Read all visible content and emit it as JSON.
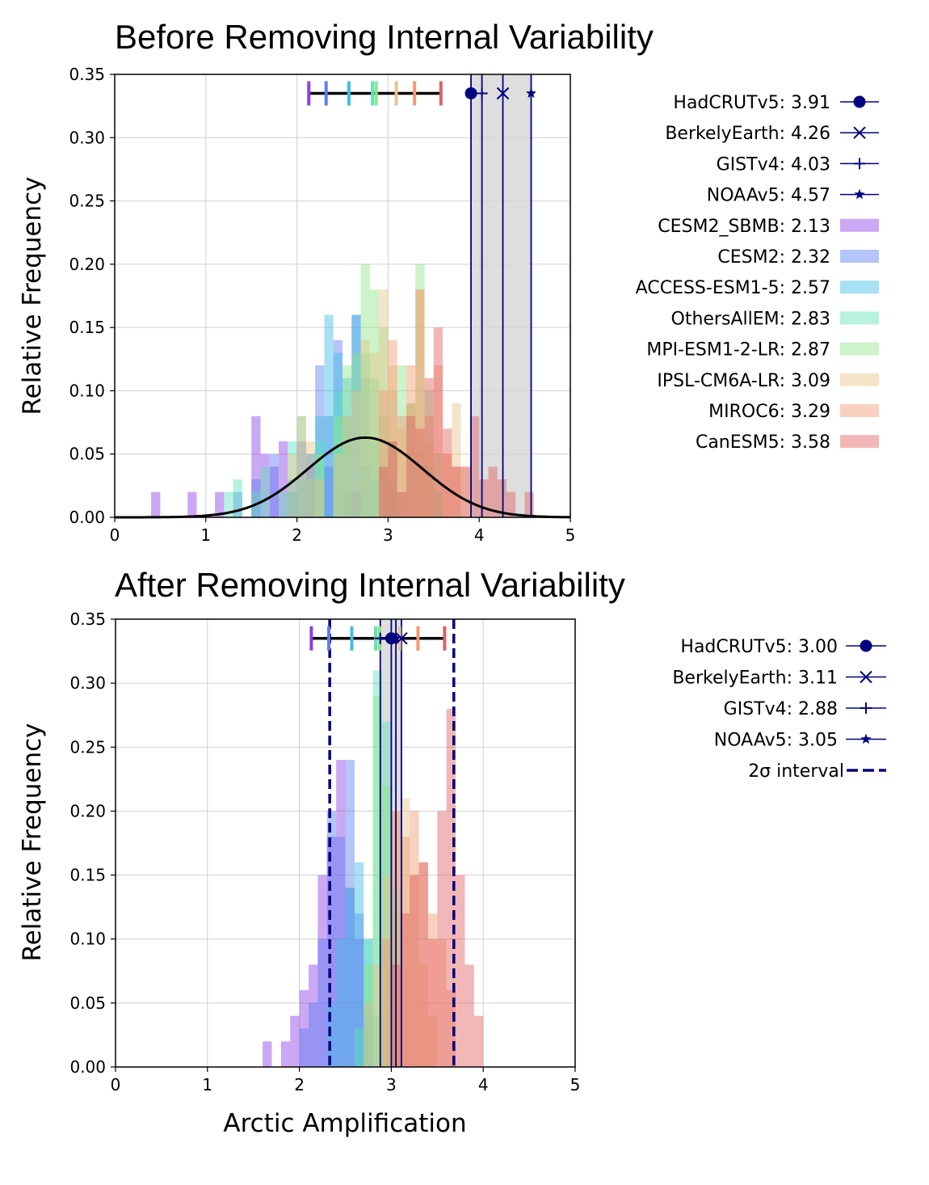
{
  "chart_data": [
    {
      "type": "histogram",
      "title": "Before Removing Internal Variability",
      "xlabel": "",
      "ylabel": "Relative Frequency",
      "xlim": [
        0,
        5
      ],
      "ylim": [
        0,
        0.35
      ],
      "xticks": [
        "0",
        "1",
        "2",
        "3",
        "4",
        "5"
      ],
      "yticks": [
        "0.00",
        "0.05",
        "0.10",
        "0.15",
        "0.20",
        "0.25",
        "0.30",
        "0.35"
      ],
      "grid": true,
      "legend_position": "right",
      "bin_width": 0.1,
      "models": [
        {
          "name": "CESM2_SBMB",
          "mean": 2.13,
          "color": "#8b3ee6",
          "hist": [
            [
              0.4,
              0.02
            ],
            [
              0.8,
              0.02
            ],
            [
              1.1,
              0.02
            ],
            [
              1.5,
              0.08
            ],
            [
              1.6,
              0.05
            ],
            [
              1.7,
              0.04
            ],
            [
              1.8,
              0.06
            ],
            [
              1.9,
              0.02
            ],
            [
              2.0,
              0.06
            ],
            [
              2.1,
              0.04
            ],
            [
              2.3,
              0.04
            ],
            [
              2.5,
              0.02
            ],
            [
              2.6,
              0.02
            ]
          ]
        },
        {
          "name": "CESM2",
          "mean": 2.32,
          "color": "#5b7cf2",
          "hist": [
            [
              1.3,
              0.02
            ],
            [
              1.5,
              0.03
            ],
            [
              1.7,
              0.05
            ],
            [
              1.9,
              0.03
            ],
            [
              2.1,
              0.05
            ],
            [
              2.2,
              0.12
            ],
            [
              2.3,
              0.08
            ],
            [
              2.4,
              0.14
            ],
            [
              2.5,
              0.08
            ],
            [
              2.6,
              0.16
            ],
            [
              2.7,
              0.04
            ],
            [
              2.8,
              0.03
            ],
            [
              3.0,
              0.02
            ]
          ]
        },
        {
          "name": "ACCESS-ESM1-5",
          "mean": 2.57,
          "color": "#3fbde6",
          "hist": [
            [
              1.9,
              0.02
            ],
            [
              2.0,
              0.03
            ],
            [
              2.1,
              0.05
            ],
            [
              2.2,
              0.08
            ],
            [
              2.3,
              0.16
            ],
            [
              2.4,
              0.13
            ],
            [
              2.5,
              0.11
            ],
            [
              2.6,
              0.16
            ],
            [
              2.7,
              0.11
            ],
            [
              2.8,
              0.06
            ],
            [
              2.9,
              0.04
            ],
            [
              3.0,
              0.03
            ],
            [
              3.1,
              0.02
            ]
          ]
        },
        {
          "name": "OthersAllEM",
          "mean": 2.83,
          "color": "#5ee3b8",
          "hist": [
            [
              1.2,
              0.02
            ],
            [
              1.3,
              0.03
            ],
            [
              1.5,
              0.02
            ],
            [
              1.6,
              0.04
            ],
            [
              1.8,
              0.02
            ],
            [
              1.9,
              0.06
            ],
            [
              2.0,
              0.08
            ],
            [
              2.2,
              0.06
            ],
            [
              2.4,
              0.1
            ],
            [
              2.5,
              0.08
            ],
            [
              2.7,
              0.13
            ],
            [
              2.8,
              0.11
            ],
            [
              2.9,
              0.08
            ],
            [
              3.0,
              0.06
            ],
            [
              3.2,
              0.09
            ],
            [
              3.3,
              0.05
            ],
            [
              3.4,
              0.04
            ],
            [
              3.5,
              0.02
            ]
          ]
        },
        {
          "name": "MPI-ESM1-2-LR",
          "mean": 2.87,
          "color": "#8fe58a",
          "hist": [
            [
              2.1,
              0.03
            ],
            [
              2.2,
              0.05
            ],
            [
              2.4,
              0.08
            ],
            [
              2.5,
              0.12
            ],
            [
              2.6,
              0.13
            ],
            [
              2.7,
              0.2
            ],
            [
              2.8,
              0.18
            ],
            [
              2.9,
              0.15
            ],
            [
              3.0,
              0.1
            ],
            [
              3.1,
              0.12
            ],
            [
              3.2,
              0.09
            ],
            [
              3.3,
              0.2
            ],
            [
              3.4,
              0.1
            ],
            [
              3.5,
              0.05
            ]
          ]
        },
        {
          "name": "IPSL-CM6A-LR",
          "mean": 3.09,
          "color": "#e6c48a",
          "hist": [
            [
              1.9,
              0.05
            ],
            [
              2.0,
              0.08
            ],
            [
              2.1,
              0.06
            ],
            [
              2.2,
              0.03
            ],
            [
              2.4,
              0.05
            ],
            [
              2.5,
              0.08
            ],
            [
              2.6,
              0.1
            ],
            [
              2.7,
              0.14
            ],
            [
              2.8,
              0.13
            ],
            [
              2.9,
              0.18
            ],
            [
              3.0,
              0.12
            ],
            [
              3.1,
              0.07
            ],
            [
              3.2,
              0.09
            ],
            [
              3.3,
              0.18
            ],
            [
              3.4,
              0.06
            ],
            [
              3.6,
              0.05
            ],
            [
              3.7,
              0.09
            ],
            [
              3.8,
              0.04
            ]
          ]
        },
        {
          "name": "MIROC6",
          "mean": 3.29,
          "color": "#f29a72",
          "hist": [
            [
              2.9,
              0.1
            ],
            [
              3.0,
              0.14
            ],
            [
              3.1,
              0.08
            ],
            [
              3.2,
              0.12
            ],
            [
              3.3,
              0.18
            ],
            [
              3.4,
              0.08
            ],
            [
              3.5,
              0.12
            ],
            [
              3.6,
              0.05
            ],
            [
              3.7,
              0.04
            ]
          ]
        },
        {
          "name": "CanESM5",
          "mean": 3.58,
          "color": "#e06060",
          "hist": [
            [
              2.9,
              0.04
            ],
            [
              3.0,
              0.06
            ],
            [
              3.1,
              0.02
            ],
            [
              3.2,
              0.08
            ],
            [
              3.3,
              0.07
            ],
            [
              3.4,
              0.11
            ],
            [
              3.5,
              0.15
            ],
            [
              3.6,
              0.07
            ],
            [
              3.7,
              0.04
            ],
            [
              3.8,
              0.04
            ],
            [
              3.9,
              0.08
            ],
            [
              4.0,
              0.03
            ],
            [
              4.1,
              0.04
            ],
            [
              4.2,
              0.03
            ],
            [
              4.3,
              0.02
            ],
            [
              4.5,
              0.02
            ]
          ]
        }
      ],
      "model_legend": [
        {
          "name": "CESM2_SBMB",
          "value": "2.13"
        },
        {
          "name": "CESM2",
          "value": "2.32"
        },
        {
          "name": "ACCESS-ESM1-5",
          "value": "2.57"
        },
        {
          "name": "OthersAllEM",
          "value": "2.83"
        },
        {
          "name": "MPI-ESM1-2-LR",
          "value": "2.87"
        },
        {
          "name": "IPSL-CM6A-LR",
          "value": "3.09"
        },
        {
          "name": "MIROC6",
          "value": "3.29"
        },
        {
          "name": "CanESM5",
          "value": "3.58"
        }
      ],
      "observations": [
        {
          "name": "HadCRUTv5",
          "value": 3.91,
          "label": "3.91",
          "marker": "circle"
        },
        {
          "name": "BerkelyEarth",
          "value": 4.26,
          "label": "4.26",
          "marker": "x"
        },
        {
          "name": "GISTv4",
          "value": 4.03,
          "label": "4.03",
          "marker": "plus"
        },
        {
          "name": "NOAAv5",
          "value": 4.57,
          "label": "4.57",
          "marker": "star"
        }
      ],
      "obs_range_shading": [
        3.91,
        4.57
      ],
      "model_range_line": [
        2.13,
        3.58
      ],
      "model_range_y": 0.335,
      "fit": {
        "type": "gaussian",
        "mean": 2.75,
        "sd": 0.63,
        "peak": 0.063
      }
    },
    {
      "type": "histogram",
      "title": "After Removing Internal Variability",
      "xlabel": "Arctic Amplification",
      "ylabel": "Relative Frequency",
      "xlim": [
        0,
        5
      ],
      "ylim": [
        0,
        0.35
      ],
      "xticks": [
        "0",
        "1",
        "2",
        "3",
        "4",
        "5"
      ],
      "yticks": [
        "0.00",
        "0.05",
        "0.10",
        "0.15",
        "0.20",
        "0.25",
        "0.30",
        "0.35"
      ],
      "grid": true,
      "legend_position": "right",
      "bin_width": 0.1,
      "models": [
        {
          "name": "CESM2_SBMB",
          "mean": 2.13,
          "color": "#8b3ee6",
          "hist": [
            [
              1.6,
              0.02
            ],
            [
              1.8,
              0.02
            ],
            [
              1.9,
              0.04
            ],
            [
              2.0,
              0.06
            ],
            [
              2.1,
              0.08
            ],
            [
              2.2,
              0.15
            ],
            [
              2.3,
              0.18
            ],
            [
              2.4,
              0.24
            ],
            [
              2.5,
              0.14
            ],
            [
              2.6,
              0.1
            ],
            [
              2.7,
              0.04
            ]
          ]
        },
        {
          "name": "CESM2",
          "mean": 2.32,
          "color": "#5b7cf2",
          "hist": [
            [
              2.0,
              0.03
            ],
            [
              2.1,
              0.05
            ],
            [
              2.2,
              0.1
            ],
            [
              2.3,
              0.2
            ],
            [
              2.4,
              0.18
            ],
            [
              2.5,
              0.24
            ],
            [
              2.6,
              0.12
            ],
            [
              2.7,
              0.05
            ]
          ]
        },
        {
          "name": "ACCESS-ESM1-5",
          "mean": 2.57,
          "color": "#3fbde6",
          "hist": [
            [
              2.3,
              0.05
            ],
            [
              2.4,
              0.1
            ],
            [
              2.5,
              0.14
            ],
            [
              2.6,
              0.16
            ],
            [
              2.7,
              0.1
            ],
            [
              2.8,
              0.04
            ]
          ]
        },
        {
          "name": "OthersAllEM",
          "mean": 2.83,
          "color": "#5ee3b8",
          "hist": [
            [
              2.6,
              0.03
            ],
            [
              2.7,
              0.1
            ],
            [
              2.8,
              0.31
            ],
            [
              2.9,
              0.27
            ],
            [
              3.0,
              0.14
            ]
          ]
        },
        {
          "name": "MPI-ESM1-2-LR",
          "mean": 2.87,
          "color": "#8fe58a",
          "hist": [
            [
              2.7,
              0.08
            ],
            [
              2.8,
              0.29
            ],
            [
              2.9,
              0.22
            ],
            [
              3.0,
              0.12
            ]
          ]
        },
        {
          "name": "IPSL-CM6A-LR",
          "mean": 3.09,
          "color": "#e6c48a",
          "hist": [
            [
              2.7,
              0.05
            ],
            [
              2.8,
              0.08
            ],
            [
              2.9,
              0.15
            ],
            [
              3.0,
              0.2
            ],
            [
              3.1,
              0.21
            ],
            [
              3.2,
              0.15
            ],
            [
              3.3,
              0.08
            ],
            [
              3.4,
              0.04
            ]
          ]
        },
        {
          "name": "MIROC6",
          "mean": 3.29,
          "color": "#f29a72",
          "hist": [
            [
              2.9,
              0.1
            ],
            [
              3.0,
              0.2
            ],
            [
              3.1,
              0.18
            ],
            [
              3.2,
              0.2
            ],
            [
              3.3,
              0.16
            ],
            [
              3.4,
              0.12
            ],
            [
              3.5,
              0.1
            ],
            [
              3.6,
              0.06
            ]
          ]
        },
        {
          "name": "CanESM5",
          "mean": 3.58,
          "color": "#e06060",
          "hist": [
            [
              3.0,
              0.08
            ],
            [
              3.1,
              0.12
            ],
            [
              3.2,
              0.15
            ],
            [
              3.3,
              0.16
            ],
            [
              3.4,
              0.1
            ],
            [
              3.5,
              0.2
            ],
            [
              3.6,
              0.28
            ],
            [
              3.7,
              0.15
            ],
            [
              3.8,
              0.08
            ],
            [
              3.9,
              0.04
            ]
          ]
        }
      ],
      "observations": [
        {
          "name": "HadCRUTv5",
          "value": 3.0,
          "label": "3.00",
          "marker": "circle"
        },
        {
          "name": "BerkelyEarth",
          "value": 3.11,
          "label": "3.11",
          "marker": "x"
        },
        {
          "name": "GISTv4",
          "value": 2.88,
          "label": "2.88",
          "marker": "plus"
        },
        {
          "name": "NOAAv5",
          "value": 3.05,
          "label": "3.05",
          "marker": "star"
        }
      ],
      "obs_range_shading": [
        2.88,
        3.11
      ],
      "model_range_line": [
        2.13,
        3.58
      ],
      "model_range_y": 0.335,
      "interval_label": "2σ interval",
      "interval": [
        2.33,
        3.68
      ]
    }
  ],
  "colors": {
    "obs_navy": "#000080",
    "shade": "#d6d6d6",
    "grid": "#d0d0d0",
    "fit_line": "#000000"
  }
}
